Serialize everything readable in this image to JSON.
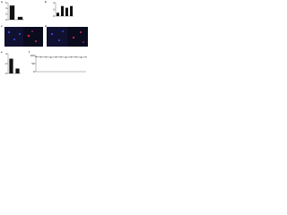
{
  "panel_labels": [
    "a",
    "b",
    "c",
    "d",
    "e",
    "f"
  ],
  "chart_data": [
    {
      "type": "bar",
      "categories": [
        null,
        null
      ],
      "values": [
        5,
        1
      ],
      "color": "#111111",
      "ylim": [
        0,
        6
      ],
      "yticks": [
        0,
        2,
        4,
        6
      ]
    },
    {
      "type": "bar",
      "categories": [
        null,
        null,
        null,
        null
      ],
      "values": [
        1,
        3,
        2.5,
        3
      ],
      "color": "#111111",
      "ylim": [
        0,
        4
      ],
      "yticks": [
        0,
        2,
        4
      ]
    },
    {
      "type": "bar",
      "categories": [
        null,
        null
      ],
      "values": [
        3,
        1
      ],
      "color": "#111111",
      "ylim": [
        0,
        4
      ],
      "yticks": [
        0,
        2,
        4
      ]
    },
    {
      "type": "line",
      "x": [
        0,
        1,
        2,
        3,
        4,
        5,
        6,
        7,
        8,
        9,
        10
      ],
      "series": [
        {
          "name": null,
          "color": "#333333",
          "values": [
            92,
            90,
            90,
            89,
            90,
            90,
            89,
            90,
            90,
            89,
            90
          ]
        }
      ],
      "xlim": [
        0,
        10
      ],
      "ylim": [
        0,
        100
      ],
      "yticks": [
        0,
        50,
        100
      ]
    }
  ]
}
